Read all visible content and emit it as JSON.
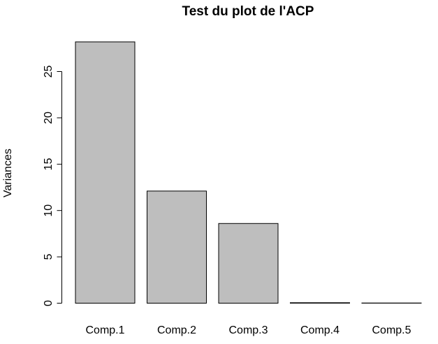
{
  "chart_data": {
    "type": "bar",
    "title": "Test du plot de l'ACP",
    "xlabel": "",
    "ylabel": "Variances",
    "categories": [
      "Comp.1",
      "Comp.2",
      "Comp.3",
      "Comp.4",
      "Comp.5"
    ],
    "values": [
      28.2,
      12.1,
      8.6,
      0.05,
      0.02
    ],
    "ylim": [
      0,
      28.2
    ],
    "yticks": [
      0,
      5,
      10,
      15,
      20,
      25
    ],
    "bar_color": "#bebebe",
    "grid": false,
    "legend": "none"
  }
}
